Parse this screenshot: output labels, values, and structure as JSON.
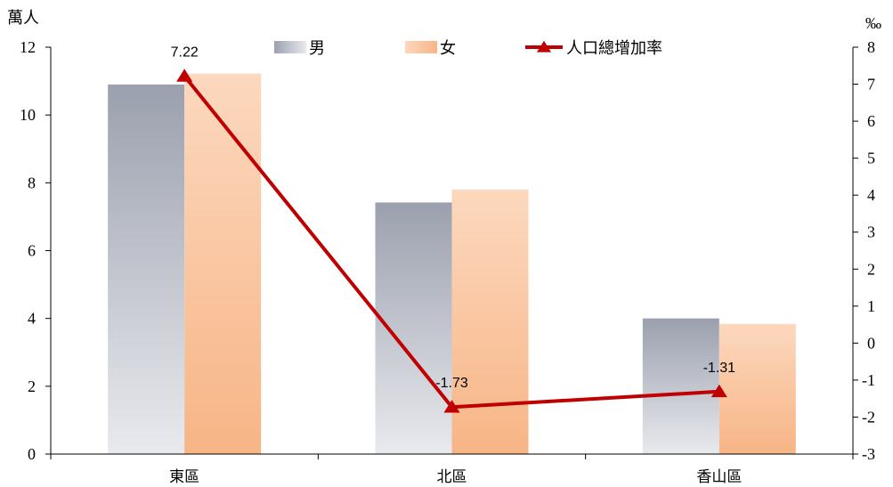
{
  "chart_data": {
    "type": "bar",
    "categories": [
      "東區",
      "北區",
      "香山區"
    ],
    "series": [
      {
        "name": "男",
        "type": "bar",
        "axis": "left",
        "values": [
          10.9,
          7.42,
          4.0
        ],
        "color_top": "#9ba0ae",
        "color_bottom": "#e9eaee"
      },
      {
        "name": "女",
        "type": "bar",
        "axis": "left",
        "values": [
          11.22,
          7.8,
          3.84
        ],
        "color_top": "#fcd8be",
        "color_bottom": "#f7b586"
      }
    ],
    "line_series": {
      "name": "人口總增加率",
      "type": "line",
      "axis": "right",
      "values": [
        7.22,
        -1.73,
        -1.31
      ],
      "data_labels": [
        "7.22",
        "-1.73",
        "-1.31"
      ],
      "color": "#c00000",
      "marker": "triangle"
    },
    "ylabel_left": "萬人",
    "ylabel_right": "‰",
    "ylim_left": [
      0,
      12
    ],
    "ylim_right": [
      -3,
      8
    ],
    "yticks_left": [
      "0",
      "2",
      "4",
      "6",
      "8",
      "10",
      "12"
    ],
    "yticks_right": [
      "-3",
      "-2",
      "-1",
      "0",
      "1",
      "2",
      "3",
      "4",
      "5",
      "6",
      "7",
      "8"
    ],
    "legend": "top-center",
    "grid": false
  }
}
